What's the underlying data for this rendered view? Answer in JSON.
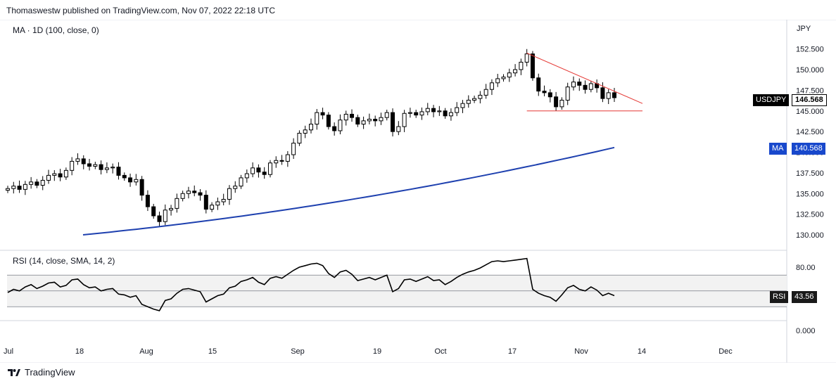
{
  "header": {
    "text": "Thomaswestw published on TradingView.com, Nov 07, 2022 22:18 UTC"
  },
  "main_indicator_label": "MA · 1D (100, close, 0)",
  "rsi_indicator_label": "RSI (14, close, SMA, 14, 2)",
  "footer": {
    "brand": "TradingView"
  },
  "colors": {
    "candle": "#000000",
    "ma_line": "#1e40af",
    "triangle": "#e53935",
    "rsi_line": "#000000",
    "rsi_band": "#f2f2f2",
    "badge_symbol": "#000000",
    "badge_ma": "#1848cc",
    "badge_rsi": "#1a1a1a"
  },
  "badges": {
    "symbol_name": "USDJPY",
    "symbol_value": "146.568",
    "ma_name": "MA",
    "ma_value": "140.568",
    "rsi_name": "RSI",
    "rsi_value": "43.56"
  },
  "chart_data": [
    {
      "type": "candlestick",
      "title": "",
      "currency_label": "JPY",
      "ylim": [
        128.5,
        154.5
      ],
      "yticks": [
        "152.500",
        "150.000",
        "147.500",
        "145.000",
        "142.500",
        "140.000",
        "137.500",
        "135.000",
        "132.500",
        "130.000"
      ],
      "xticks": [
        "Jul",
        "18",
        "Aug",
        "15",
        "Sep",
        "19",
        "Oct",
        "17",
        "Nov",
        "14",
        "Dec"
      ],
      "close_series": [
        135.6,
        135.9,
        135.5,
        136.1,
        136.4,
        136.0,
        136.6,
        137.2,
        137.4,
        137.0,
        137.8,
        138.9,
        139.2,
        138.6,
        138.3,
        138.5,
        137.9,
        138.1,
        138.2,
        137.2,
        136.9,
        136.4,
        136.7,
        134.8,
        133.4,
        132.3,
        131.6,
        133.0,
        133.2,
        134.4,
        135.0,
        135.3,
        135.1,
        134.8,
        133.1,
        133.6,
        134.0,
        134.3,
        135.6,
        135.9,
        136.9,
        137.4,
        138.1,
        137.6,
        137.3,
        138.7,
        139.0,
        138.9,
        139.7,
        141.1,
        142.3,
        142.7,
        143.4,
        144.8,
        144.5,
        143.1,
        142.6,
        143.9,
        144.6,
        144.2,
        143.4,
        143.8,
        144.0,
        143.8,
        144.2,
        144.8,
        142.5,
        143.1,
        144.7,
        144.8,
        144.5,
        144.9,
        145.3,
        144.9,
        145.0,
        144.4,
        144.8,
        145.4,
        145.9,
        146.3,
        146.5,
        146.9,
        147.6,
        148.4,
        148.9,
        149.1,
        149.6,
        150.0,
        150.9,
        151.9,
        149.0,
        147.4,
        147.2,
        146.7,
        145.5,
        146.3,
        147.9,
        148.5,
        148.1,
        147.6,
        148.3,
        147.8,
        146.5,
        147.2,
        146.6
      ],
      "annotations": {
        "triangle_upper": [
          [
            152.0,
            0
          ],
          [
            145.9,
            1
          ]
        ],
        "triangle_support": 145.0
      }
    },
    {
      "type": "line",
      "name": "MA",
      "series_start": 130.0,
      "series_end": 140.568
    },
    {
      "type": "line",
      "name": "RSI",
      "ylim": [
        -5,
        95
      ],
      "yticks": [
        "80.00",
        "0.000"
      ],
      "bands": [
        70,
        30
      ],
      "values": [
        48,
        52,
        50,
        55,
        58,
        53,
        56,
        60,
        61,
        55,
        57,
        64,
        65,
        58,
        54,
        55,
        50,
        52,
        53,
        46,
        45,
        42,
        44,
        33,
        30,
        27,
        25,
        38,
        40,
        47,
        52,
        53,
        51,
        49,
        36,
        40,
        44,
        46,
        54,
        56,
        62,
        64,
        67,
        61,
        58,
        66,
        68,
        66,
        71,
        76,
        80,
        82,
        84,
        85,
        82,
        72,
        67,
        74,
        76,
        71,
        63,
        65,
        67,
        64,
        67,
        70,
        49,
        53,
        64,
        65,
        62,
        65,
        68,
        63,
        64,
        58,
        62,
        67,
        71,
        74,
        76,
        79,
        83,
        87,
        88,
        87,
        88,
        89,
        90,
        91,
        52,
        47,
        44,
        42,
        37,
        45,
        54,
        57,
        52,
        50,
        55,
        51,
        44,
        47,
        44
      ]
    }
  ]
}
